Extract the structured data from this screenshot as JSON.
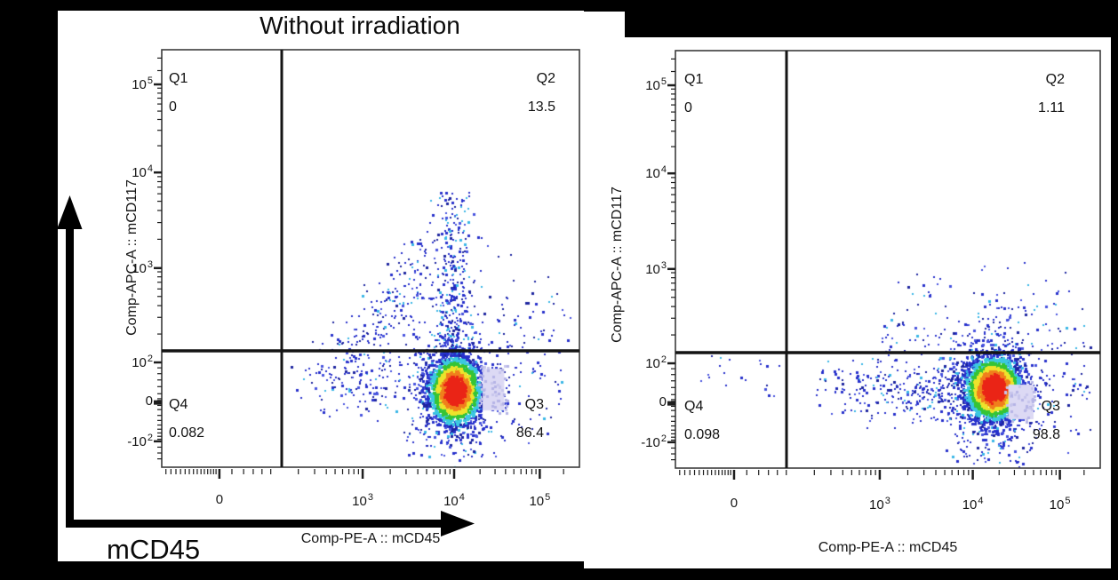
{
  "colors": {
    "background": "#000000",
    "panel": "#ffffff",
    "frame": "#3c3c3c",
    "quadrant_line": "#141414",
    "tick": "#1e1e1e",
    "dot_blue": "#2731cb",
    "dot_blue_dark": "#1d249f",
    "dot_blue_light": "#4753de",
    "dot_cyan": "#38b6e6",
    "jet_red": "#ea2416",
    "jet_orange": "#f07f1c",
    "jet_yellow": "#ede32b",
    "jet_green": "#35c435",
    "jet_cyan": "#3cc8e0",
    "pale_patch": "#dcd9f4",
    "pale_dot": "#c7c5ec"
  },
  "annotations": {
    "corner_axis_label": "mCD45"
  },
  "chart_data": {
    "type": "scatter",
    "subtype": "flow-cytometry-pseudocolor-density",
    "x_scale": "biexponential",
    "y_scale": "biexponential",
    "plots": [
      {
        "panel": "left",
        "title": "Without irradiation",
        "xlabel": "Comp-PE-A :: mCD45",
        "ylabel": "Comp-APC-A :: mCD117",
        "x_ticks": [
          "0",
          "10^3",
          "10^4",
          "10^5"
        ],
        "y_ticks": [
          "10^5",
          "10^4",
          "10^3",
          "10^2",
          "0",
          "-10^2"
        ],
        "quadrants": [
          {
            "name": "Q1",
            "value": "0"
          },
          {
            "name": "Q2",
            "value": "13.5"
          },
          {
            "name": "Q3",
            "value": "86.4"
          },
          {
            "name": "Q4",
            "value": "0.082"
          }
        ],
        "clusters": [
          {
            "kind": "halo",
            "cx": 0.702,
            "cy": 0.817,
            "sx": 0.065,
            "sy": 0.075,
            "n": 420
          },
          {
            "kind": "blob",
            "cx": 0.475,
            "cy": 0.795,
            "sx": 0.085,
            "sy": 0.04,
            "n": 120
          },
          {
            "kind": "ridge",
            "x1": 0.655,
            "y1": 0.415,
            "x2": 0.435,
            "y2": 0.705,
            "sx": 0.035,
            "drop": 0.09,
            "n": 240
          },
          {
            "kind": "column",
            "cx": 0.7,
            "sx": 0.023,
            "y_base": 0.73,
            "y_span": 0.39,
            "pow": 1.7,
            "n": 360
          },
          {
            "kind": "sprinkle",
            "x0": 0.8,
            "x1": 0.98,
            "y0": 0.58,
            "y1": 0.92,
            "n": 60
          },
          {
            "kind": "sprinkle",
            "x0": 0.58,
            "x1": 0.82,
            "y0": 0.915,
            "y1": 0.975,
            "n": 30
          },
          {
            "kind": "sprinkle",
            "x0": 0.7,
            "x1": 0.95,
            "y0": 0.45,
            "y1": 0.7,
            "bias": 0.6,
            "n": 40
          },
          {
            "kind": "core",
            "cx": 0.702,
            "cy": 0.817,
            "sx": 0.031,
            "sy": 0.04,
            "n": 2400
          }
        ],
        "patch": {
          "x0": 0.768,
          "x1": 0.82,
          "y0": 0.764,
          "y1": 0.864,
          "dots": 55
        }
      },
      {
        "panel": "right",
        "title": "",
        "xlabel": "Comp-PE-A :: mCD45",
        "ylabel": "Comp-APC-A :: mCD117",
        "x_ticks": [
          "0",
          "10^3",
          "10^4",
          "10^5"
        ],
        "y_ticks": [
          "10^5",
          "10^4",
          "10^3",
          "10^2",
          "0",
          "-10^2"
        ],
        "quadrants": [
          {
            "name": "Q1",
            "value": "0"
          },
          {
            "name": "Q2",
            "value": "1.11"
          },
          {
            "name": "Q3",
            "value": "98.8"
          },
          {
            "name": "Q4",
            "value": "0.098"
          }
        ],
        "clusters": [
          {
            "kind": "halo",
            "cx": 0.749,
            "cy": 0.81,
            "sx": 0.062,
            "sy": 0.075,
            "n": 480
          },
          {
            "kind": "blob",
            "cx": 0.585,
            "cy": 0.815,
            "sx": 0.075,
            "sy": 0.042,
            "n": 250
          },
          {
            "kind": "blob",
            "cx": 0.42,
            "cy": 0.8,
            "sx": 0.048,
            "sy": 0.038,
            "n": 55
          },
          {
            "kind": "blob",
            "cx": 0.755,
            "cy": 0.7,
            "sx": 0.04,
            "sy": 0.05,
            "n": 60
          },
          {
            "kind": "sprinkle",
            "x0": 0.04,
            "x1": 0.25,
            "y0": 0.72,
            "y1": 0.84,
            "n": 20
          },
          {
            "kind": "sprinkle",
            "x0": 0.48,
            "x1": 0.985,
            "y0": 0.5,
            "y1": 0.715,
            "bias": 0.55,
            "n": 105
          },
          {
            "kind": "sprinkle",
            "x0": 0.66,
            "x1": 0.86,
            "y0": 0.915,
            "y1": 0.985,
            "n": 40
          },
          {
            "kind": "sprinkle",
            "x0": 0.86,
            "x1": 0.99,
            "y0": 0.7,
            "y1": 0.92,
            "n": 45
          },
          {
            "kind": "core",
            "cx": 0.749,
            "cy": 0.81,
            "sx": 0.033,
            "sy": 0.038,
            "n": 2700
          }
        ],
        "patch": {
          "x0": 0.784,
          "x1": 0.843,
          "y0": 0.8,
          "y1": 0.883,
          "dots": 50
        }
      }
    ]
  }
}
